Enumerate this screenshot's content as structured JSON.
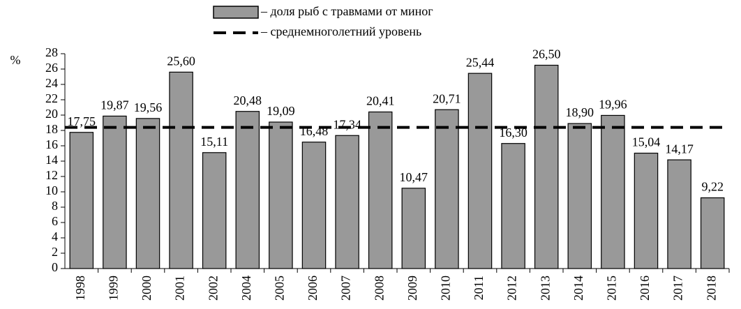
{
  "chart_data": {
    "type": "bar",
    "y_label": "%",
    "categories": [
      "1998",
      "1999",
      "2000",
      "2001",
      "2002",
      "2004",
      "2005",
      "2006",
      "2007",
      "2008",
      "2009",
      "2010",
      "2011",
      "2012",
      "2013",
      "2014",
      "2015",
      "2016",
      "2017",
      "2018"
    ],
    "series": [
      {
        "name": "– доля рыб с травмами от миног",
        "color": "#999999",
        "values": [
          17.75,
          19.87,
          19.56,
          25.6,
          15.11,
          20.48,
          19.09,
          16.48,
          17.34,
          20.41,
          10.47,
          20.71,
          25.44,
          16.3,
          26.5,
          18.9,
          19.96,
          15.04,
          14.17,
          9.22
        ],
        "value_labels": [
          "17,75",
          "19,87",
          "19,56",
          "25,60",
          "15,11",
          "20,48",
          "19,09",
          "16,48",
          "17,34",
          "20,41",
          "10,47",
          "20,71",
          "25,44",
          "16,30",
          "26,50",
          "18,90",
          "19,96",
          "15,04",
          "14,17",
          "9,22"
        ]
      }
    ],
    "reference_line": {
      "name": "– среднемноголетний уровень",
      "value": 18.4,
      "color": "#000000"
    },
    "ylim": [
      0,
      28
    ],
    "yticks": [
      0,
      2,
      4,
      6,
      8,
      10,
      12,
      14,
      16,
      18,
      20,
      22,
      24,
      26,
      28
    ],
    "grid": false
  }
}
